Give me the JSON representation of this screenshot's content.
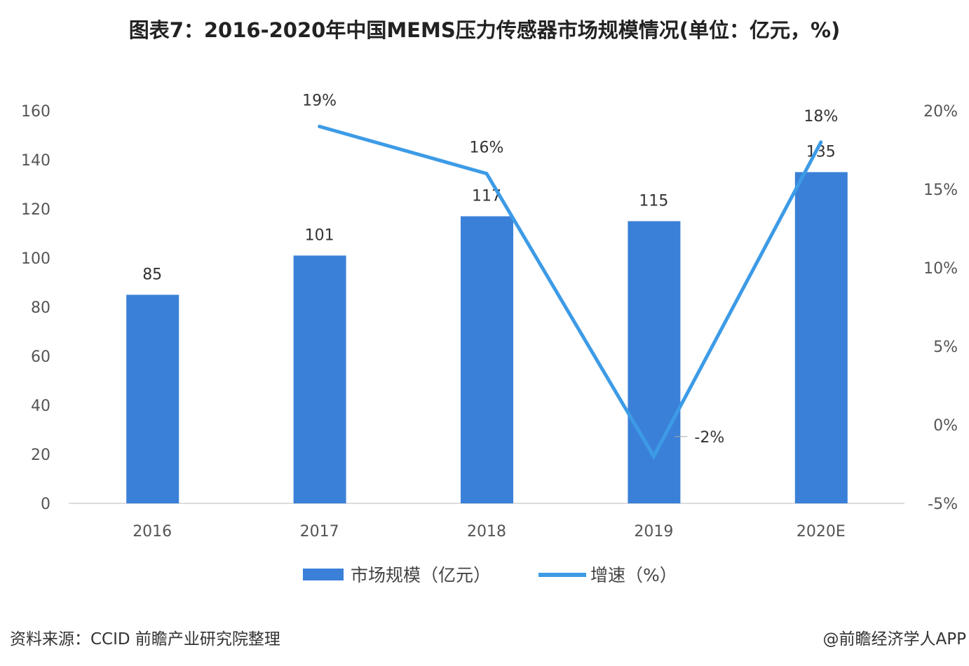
{
  "title": "图表7：2016-2020年中国MEMS压力传感器市场规模情况(单位：亿元，%)",
  "source": "资料来源：CCID 前瞻产业研究院整理",
  "credit": "@前瞻经济学人APP",
  "chart_data": {
    "type": "bar+line",
    "categories": [
      "2016",
      "2017",
      "2018",
      "2019",
      "2020E"
    ],
    "series": [
      {
        "name": "市场规模（亿元）",
        "type": "bar",
        "axis": "left",
        "values": [
          85,
          101,
          117,
          115,
          135
        ],
        "labels": [
          "85",
          "101",
          "117",
          "115",
          "135"
        ],
        "color": "#3a80d8"
      },
      {
        "name": "增速（%）",
        "type": "line",
        "axis": "right",
        "values": [
          null,
          19,
          16,
          -2,
          18
        ],
        "labels": [
          "",
          "19%",
          "16%",
          "-2%",
          "18%"
        ],
        "color": "#3d9be6"
      }
    ],
    "left_axis": {
      "ylim": [
        0,
        160
      ],
      "ticks": [
        "0",
        "20",
        "40",
        "60",
        "80",
        "100",
        "120",
        "140",
        "160"
      ]
    },
    "right_axis": {
      "ylim": [
        -5,
        20
      ],
      "ticks": [
        "-5%",
        "0%",
        "5%",
        "10%",
        "15%",
        "20%"
      ]
    },
    "grid": false,
    "legend": "bottom"
  }
}
